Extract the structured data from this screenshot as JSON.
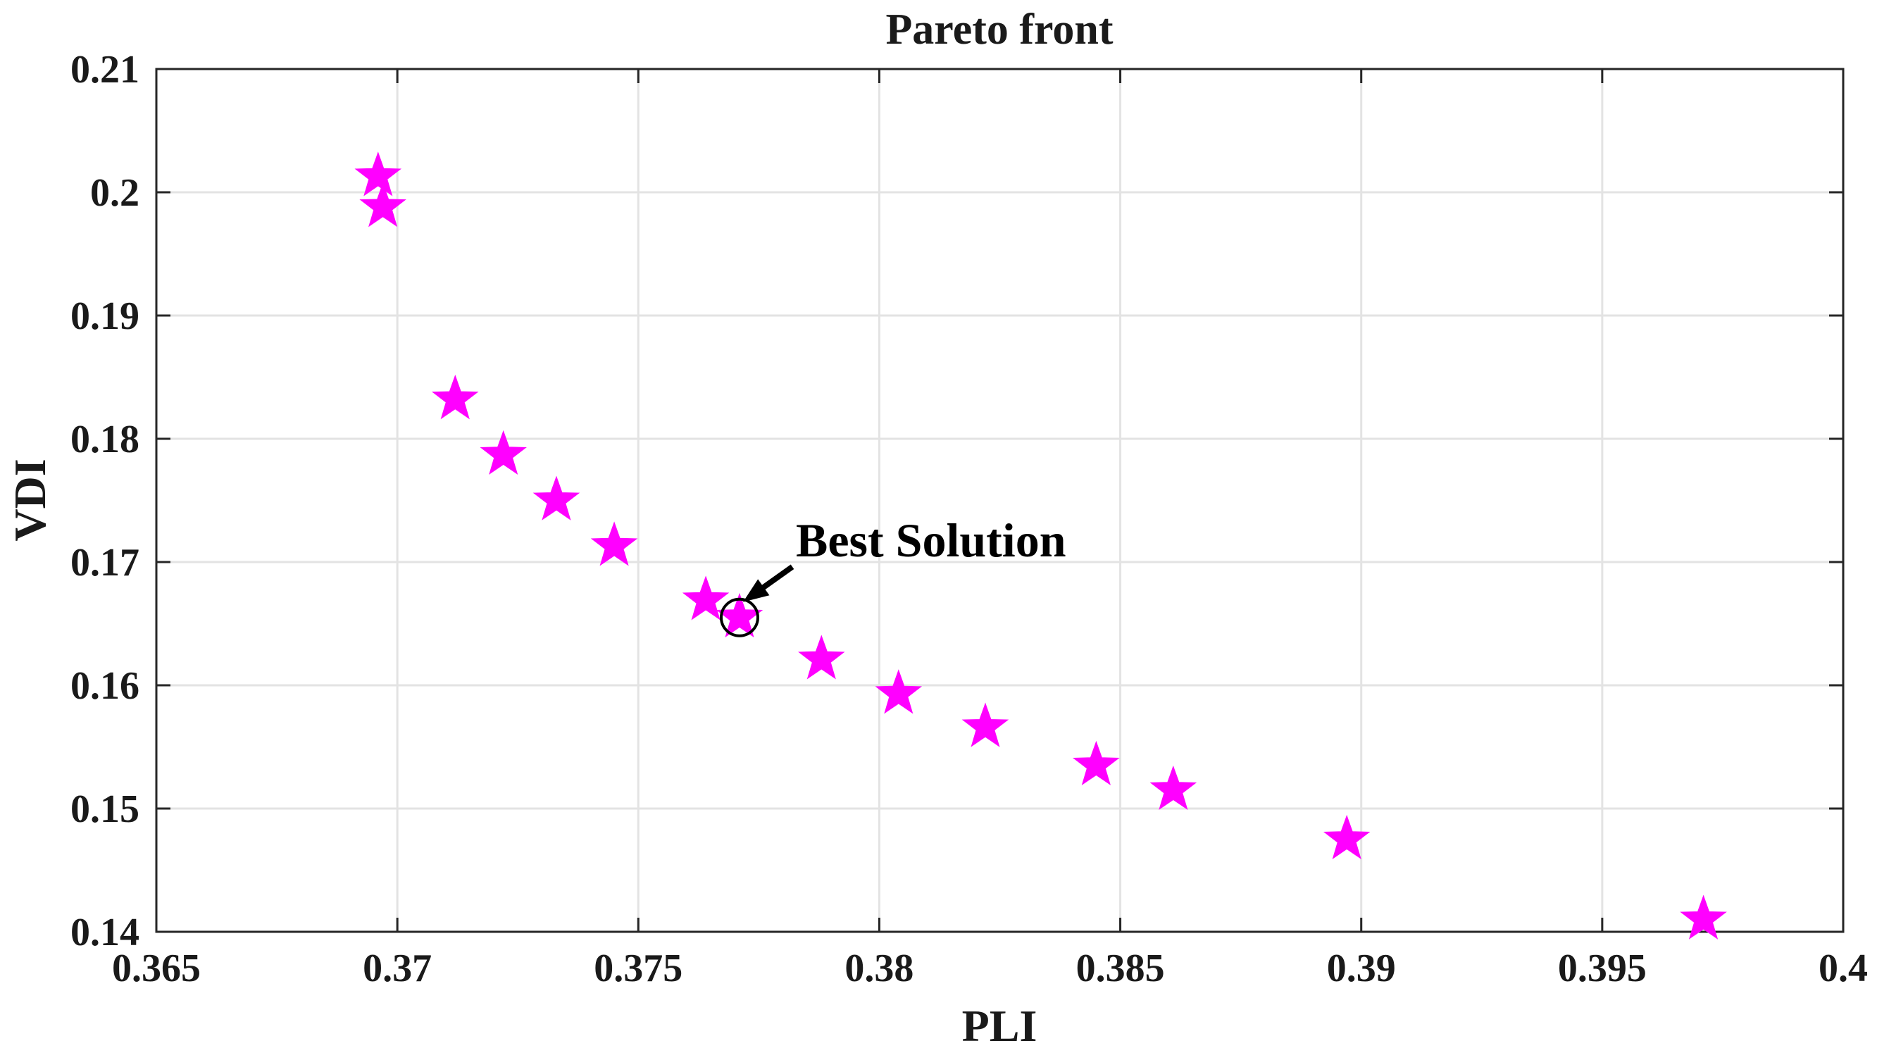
{
  "chart_data": {
    "type": "scatter",
    "title": "Pareto front",
    "xlabel": "PLI",
    "ylabel": "VDI",
    "xlim": [
      0.365,
      0.4
    ],
    "ylim": [
      0.14,
      0.21
    ],
    "xticks": [
      0.365,
      0.37,
      0.375,
      0.38,
      0.385,
      0.39,
      0.395,
      0.4
    ],
    "xtick_labels": [
      "0.365",
      "0.37",
      "0.375",
      "0.38",
      "0.385",
      "0.39",
      "0.395",
      "0.4"
    ],
    "yticks": [
      0.14,
      0.15,
      0.16,
      0.17,
      0.18,
      0.19,
      0.2,
      0.21
    ],
    "ytick_labels": [
      "0.14",
      "0.15",
      "0.16",
      "0.17",
      "0.18",
      "0.19",
      "0.2",
      "0.21"
    ],
    "grid": true,
    "marker": "star",
    "marker_color": "#ff00ff",
    "series": [
      {
        "x": [
          0.3696,
          0.3697,
          0.3712,
          0.3722,
          0.3733,
          0.3745,
          0.3764,
          0.3771,
          0.3788,
          0.3804,
          0.3822,
          0.3845,
          0.3861,
          0.3897,
          0.3971
        ],
        "y": [
          0.2013,
          0.1988,
          0.1832,
          0.1787,
          0.175,
          0.1713,
          0.1669,
          0.1655,
          0.1621,
          0.1593,
          0.1566,
          0.1535,
          0.1515,
          0.1475,
          0.141
        ]
      }
    ],
    "annotations": [
      {
        "text": "Best Solution",
        "x": 0.3771,
        "y": 0.1655
      }
    ]
  }
}
